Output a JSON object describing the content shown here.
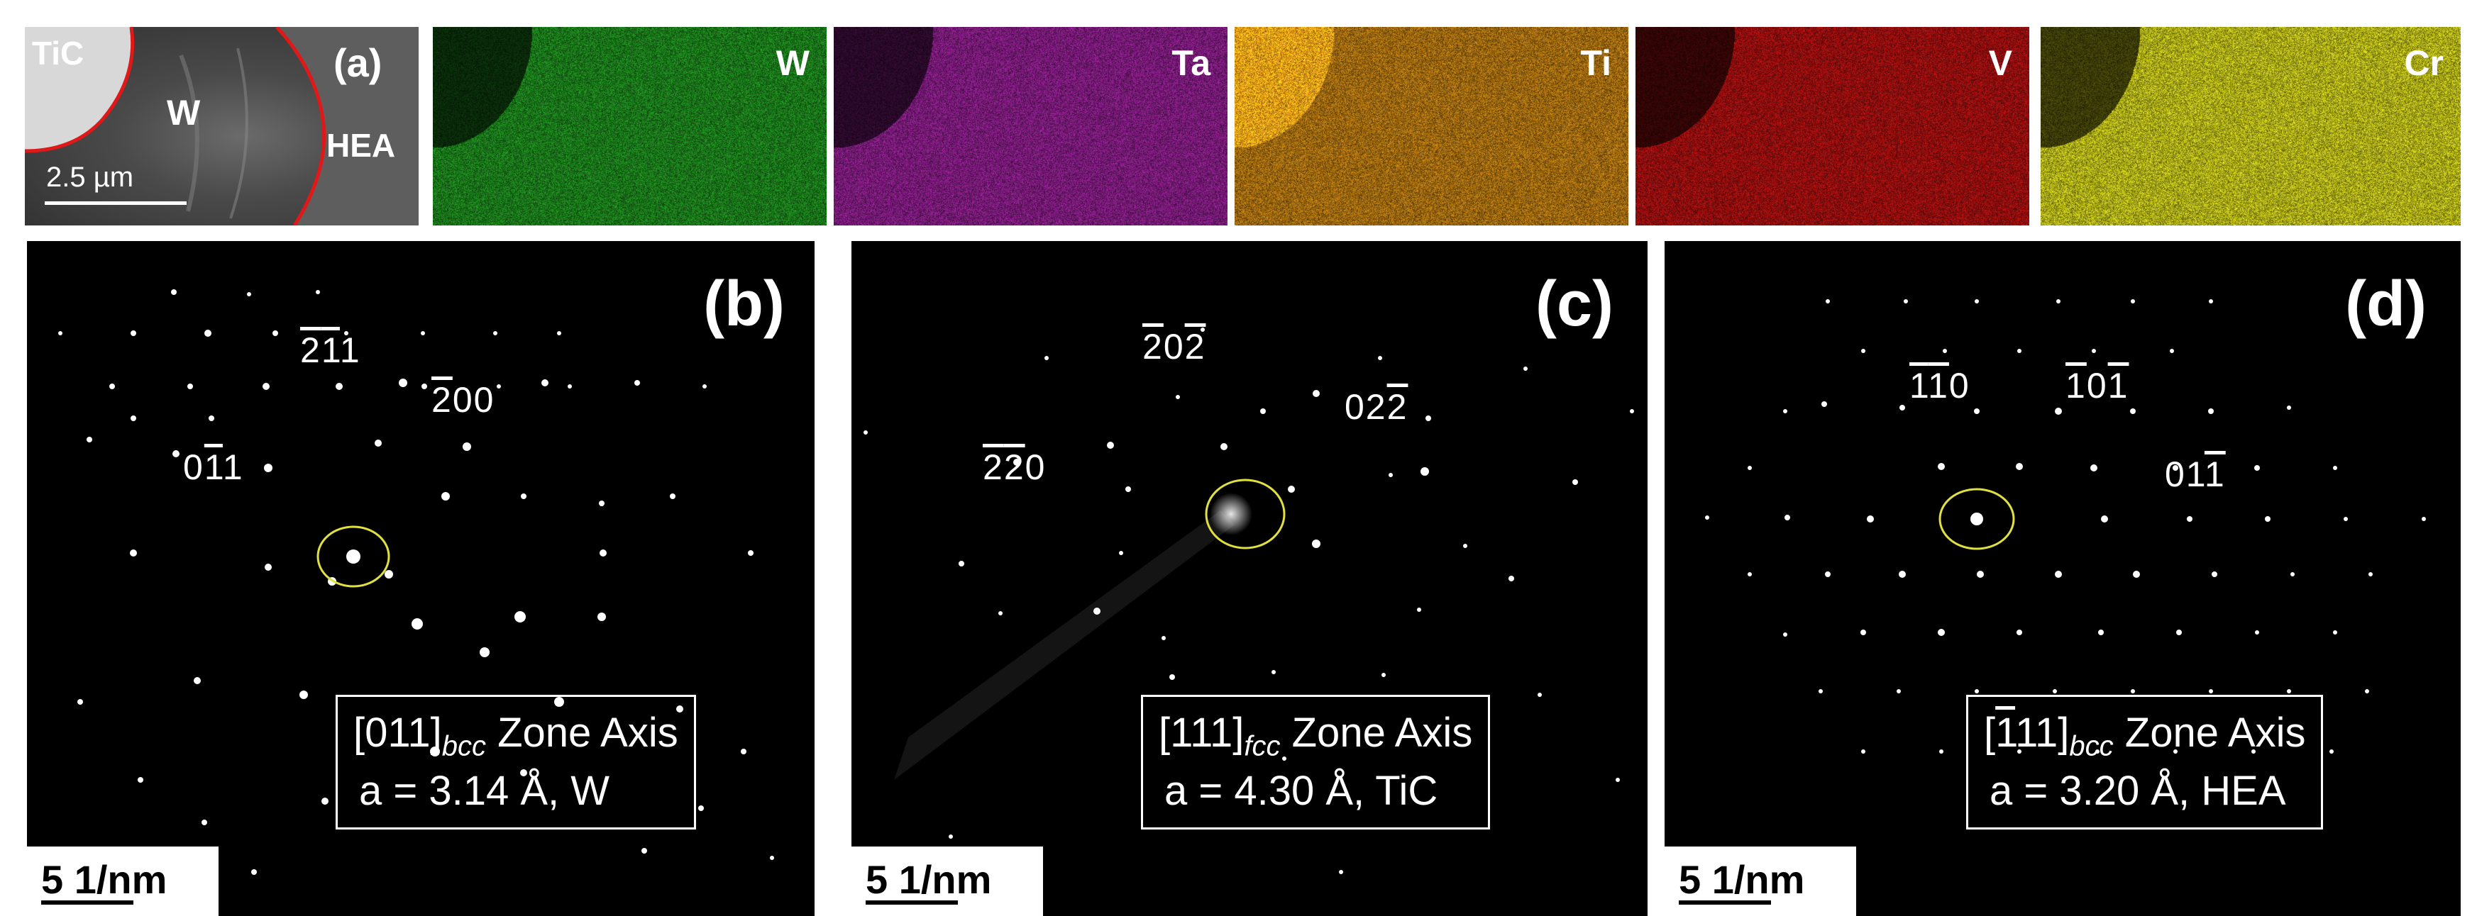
{
  "panel_a": {
    "label": "(a)",
    "regions": {
      "tic": "TiC",
      "w": "W",
      "hea": "HEA"
    },
    "scale_bar": "2.5 µm"
  },
  "eds_maps": [
    {
      "element": "W",
      "color": "#1e8a1e"
    },
    {
      "element": "Ta",
      "color": "#8a1e8a"
    },
    {
      "element": "Ti",
      "color": "#b87a10"
    },
    {
      "element": "V",
      "color": "#a81010"
    },
    {
      "element": "Cr",
      "color": "#c8c81a"
    }
  ],
  "panel_b": {
    "label": "(b)",
    "hkl": [
      {
        "text": "211",
        "bars": [
          0,
          1
        ]
      },
      {
        "text": "200",
        "bars": [
          0
        ]
      },
      {
        "text": "011",
        "bars": [
          1
        ]
      }
    ],
    "zone": {
      "pre": "[011]",
      "sub": "bcc",
      "post": " Zone Axis",
      "line2": "a = 3.14 Å, W"
    },
    "scale": "5 1/nm"
  },
  "panel_c": {
    "label": "(c)",
    "hkl": [
      {
        "text": "202",
        "bars": [
          0,
          2
        ]
      },
      {
        "text": "022",
        "bars": [
          2
        ]
      },
      {
        "text": "220",
        "bars": [
          0,
          1
        ]
      }
    ],
    "zone": {
      "pre": "[111]",
      "sub": "fcc",
      "post": " Zone Axis",
      "line2": "a = 4.30 Å, TiC"
    },
    "scale": "5 1/nm"
  },
  "panel_d": {
    "label": "(d)",
    "hkl": [
      {
        "text": "110",
        "bars": [
          0,
          1
        ]
      },
      {
        "text": "101",
        "bars": [
          0,
          2
        ]
      },
      {
        "text": "011",
        "bars": [
          2
        ]
      }
    ],
    "zone": {
      "pre_open": "[",
      "pre_bar": "1",
      "pre_rest": "11]",
      "sub": "bcc",
      "post": " Zone Axis",
      "line2": "a = 3.20 Å, HEA"
    },
    "scale": "5 1/nm"
  }
}
